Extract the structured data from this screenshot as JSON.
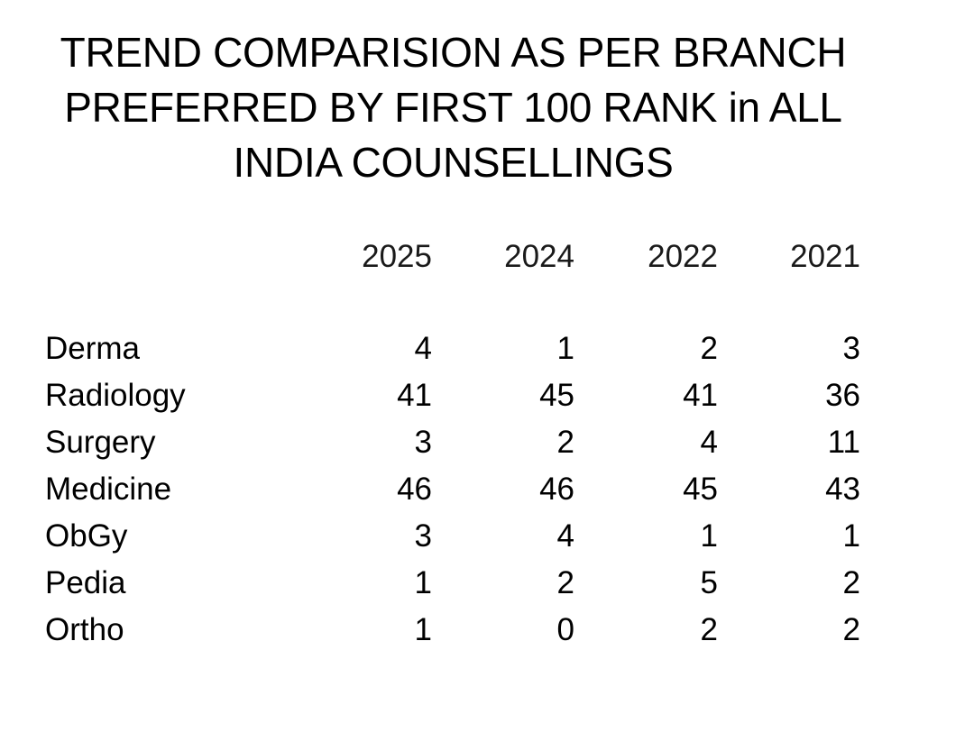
{
  "title_lines": [
    "TREND COMPARISION AS PER BRANCH",
    "PREFERRED BY FIRST 100 RANK in ALL",
    "INDIA COUNSELLINGS"
  ],
  "years": [
    "2025",
    "2024",
    "2022",
    "2021"
  ],
  "rows": [
    {
      "branch": "Derma",
      "values": [
        "4",
        "1",
        "2",
        "3"
      ]
    },
    {
      "branch": "Radiology",
      "values": [
        "41",
        "45",
        "41",
        "36"
      ]
    },
    {
      "branch": "Surgery",
      "values": [
        "3",
        "2",
        "4",
        "11"
      ]
    },
    {
      "branch": "Medicine",
      "values": [
        "46",
        "46",
        "45",
        "43"
      ]
    },
    {
      "branch": "ObGy",
      "values": [
        "3",
        "4",
        "1",
        "1"
      ]
    },
    {
      "branch": "Pedia",
      "values": [
        "1",
        "2",
        "5",
        "2"
      ]
    },
    {
      "branch": "Ortho",
      "values": [
        "1",
        "0",
        "2",
        "2"
      ]
    }
  ],
  "chart_data": {
    "type": "table",
    "title": "TREND COMPARISION AS PER BRANCH PREFERRED BY FIRST 100 RANK in ALL INDIA COUNSELLINGS",
    "columns": [
      "2025",
      "2024",
      "2022",
      "2021"
    ],
    "categories": [
      "Derma",
      "Radiology",
      "Surgery",
      "Medicine",
      "ObGy",
      "Pedia",
      "Ortho"
    ],
    "series": [
      {
        "name": "2025",
        "values": [
          4,
          41,
          3,
          46,
          3,
          1,
          1
        ]
      },
      {
        "name": "2024",
        "values": [
          1,
          45,
          2,
          46,
          4,
          2,
          0
        ]
      },
      {
        "name": "2022",
        "values": [
          2,
          41,
          4,
          45,
          1,
          5,
          2
        ]
      },
      {
        "name": "2021",
        "values": [
          3,
          36,
          11,
          43,
          1,
          2,
          2
        ]
      }
    ]
  }
}
